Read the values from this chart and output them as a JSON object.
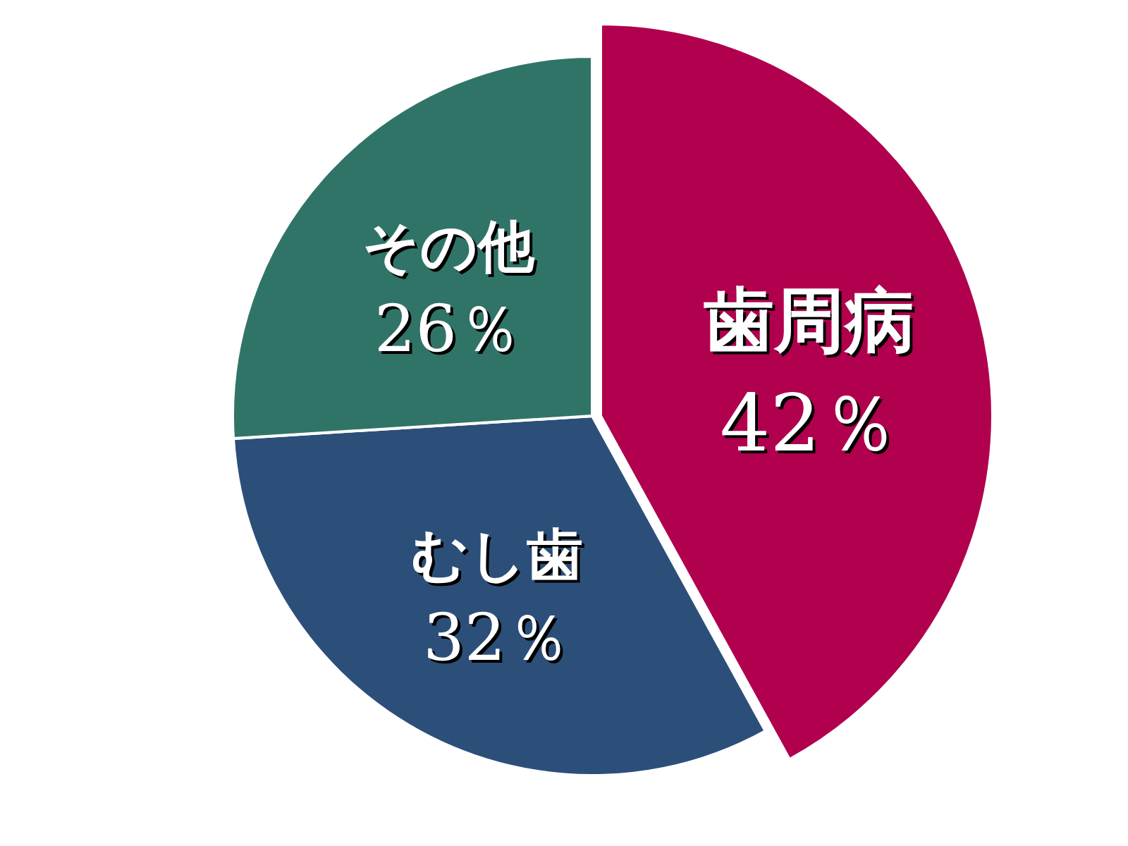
{
  "chart_data": {
    "type": "pie",
    "categories": [
      "歯周病",
      "むし歯",
      "その他"
    ],
    "values": [
      42,
      32,
      26
    ],
    "colors": [
      "#b0004e",
      "#2c4f7a",
      "#307468"
    ],
    "value_labels": [
      "42％",
      "32％",
      "26％"
    ]
  }
}
